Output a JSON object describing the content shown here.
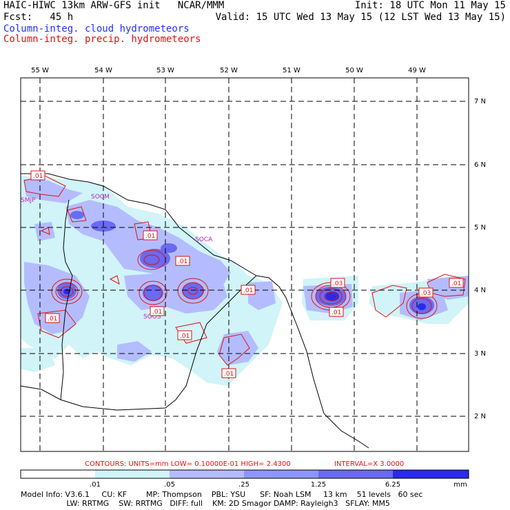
{
  "header": {
    "line1_left": "HAIC-HIWC 13km ARW-GFS init   NCAR/MMM",
    "line1_right": "Init: 18 UTC Mon 11 May 15",
    "line2_left": "Fcst:   45 h",
    "line2_right": "Valid: 15 UTC Wed 13 May 15 (12 LST Wed 13 May 15)",
    "line3": "Column-integ. cloud hydrometeors",
    "line4": "Column-integ. precip. hydrometeors"
  },
  "longitudes": [
    "55 W",
    "54 W",
    "53 W",
    "52 W",
    "51 W",
    "50 W",
    "49 W"
  ],
  "latitudes": [
    "7 N",
    "6 N",
    "5 N",
    "4 N",
    "3 N",
    "2 N"
  ],
  "place_labels": [
    "SMJP",
    "SOCM",
    "SOCA",
    "SOOS"
  ],
  "contour_labels": [
    ".01",
    ".01",
    ".01",
    ".01",
    ".01",
    ".01",
    ".01",
    ".03",
    ".01",
    ".01",
    ".03",
    ".01"
  ],
  "contour_info": {
    "contours": "CONTOURS:  UNITS=mm  LOW= 0.10000E-01  HIGH=  2.4300",
    "interval": "INTERVAL=X  3.0000"
  },
  "colorbar": {
    "ticks": [
      ".01",
      ".05",
      ".25",
      "1.25",
      "6.25"
    ],
    "unit": "mm",
    "colors": [
      "#ffffff",
      "#d0f4f8",
      "#b4bcff",
      "#8c96ff",
      "#6a6af2",
      "#2a2ae8"
    ]
  },
  "model_info": {
    "line1": "Model Info: V3.6.1     CU: KF        MP: Thompson    PBL: YSU      SF: Noah LSM     13 km    51 levels   60 sec",
    "line2": "                   LW: RRTMG    SW: RRTMG   DIFF: full    KM: 2D Smagor DAMP: Rayleigh3   SFLAY: MM5"
  }
}
